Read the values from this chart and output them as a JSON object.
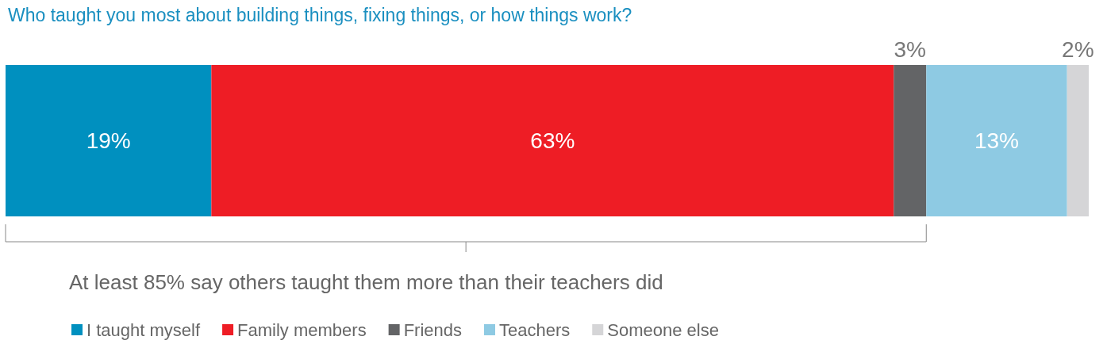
{
  "chart_data": {
    "type": "bar",
    "orientation": "horizontal",
    "stacked": true,
    "title": "Who taught you most about building things, fixing things, or how things work?",
    "categories": [
      null
    ],
    "series": [
      {
        "name": "I taught myself",
        "color": "#0090bf",
        "values": [
          19
        ],
        "value_labels": [
          "19%"
        ]
      },
      {
        "name": "Family members",
        "color": "#ee1d25",
        "values": [
          63
        ],
        "value_labels": [
          "63%"
        ]
      },
      {
        "name": "Friends",
        "color": "#636466",
        "values": [
          3
        ],
        "value_labels": [
          "3%"
        ]
      },
      {
        "name": "Teachers",
        "color": "#8ecae3",
        "values": [
          13
        ],
        "value_labels": [
          "13%"
        ]
      },
      {
        "name": "Someone else",
        "color": "#d5d5d7",
        "values": [
          2
        ],
        "value_labels": [
          "2%"
        ]
      }
    ],
    "tick_labels": false,
    "legend": "bottom left",
    "annotations": [
      "At least 85% say others taught them more than their teachers did"
    ]
  }
}
